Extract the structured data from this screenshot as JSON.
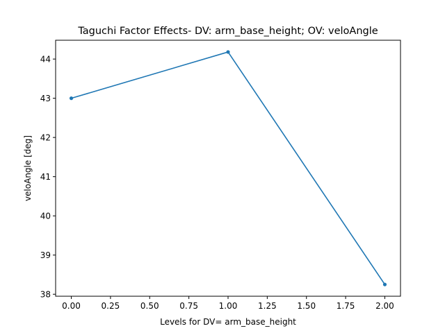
{
  "chart_data": {
    "type": "line",
    "title": "Taguchi Factor Effects- DV: arm_base_height; OV: veloAngle",
    "xlabel": "Levels for DV= arm_base_height",
    "ylabel": "veloAngle [deg]",
    "series": [
      {
        "name": "veloAngle",
        "x": [
          0,
          1,
          2
        ],
        "y": [
          43.0,
          44.18,
          38.25
        ],
        "color": "#1f77b4"
      }
    ],
    "xlim": [
      -0.1,
      2.1
    ],
    "ylim": [
      37.95,
      44.48
    ],
    "xticks": [
      0.0,
      0.25,
      0.5,
      0.75,
      1.0,
      1.25,
      1.5,
      1.75,
      2.0
    ],
    "xtick_labels": [
      "0.00",
      "0.25",
      "0.50",
      "0.75",
      "1.00",
      "1.25",
      "1.50",
      "1.75",
      "2.00"
    ],
    "yticks": [
      38,
      39,
      40,
      41,
      42,
      43,
      44
    ],
    "ytick_labels": [
      "38",
      "39",
      "40",
      "41",
      "42",
      "43",
      "44"
    ],
    "grid": false,
    "legend": false
  }
}
